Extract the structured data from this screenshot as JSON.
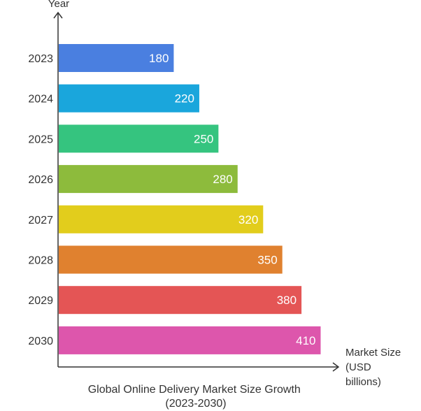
{
  "chart_data": {
    "type": "bar",
    "orientation": "horizontal",
    "title_lines": [
      "Global Online Delivery Market Size Growth",
      "(2023-2030)"
    ],
    "y_axis_label": "Year",
    "x_axis_label_lines": [
      "Market Size",
      "(USD",
      "billions)"
    ],
    "categories": [
      "2023",
      "2024",
      "2025",
      "2026",
      "2027",
      "2028",
      "2029",
      "2030"
    ],
    "values": [
      180,
      220,
      250,
      280,
      320,
      350,
      380,
      410
    ],
    "colors": [
      "#4a7fe0",
      "#1aa6dc",
      "#35c47f",
      "#8dbb3c",
      "#e2cd1c",
      "#e0812f",
      "#e45555",
      "#dd56ac"
    ],
    "xlim": [
      0,
      439
    ],
    "grid": false,
    "legend": "none"
  }
}
